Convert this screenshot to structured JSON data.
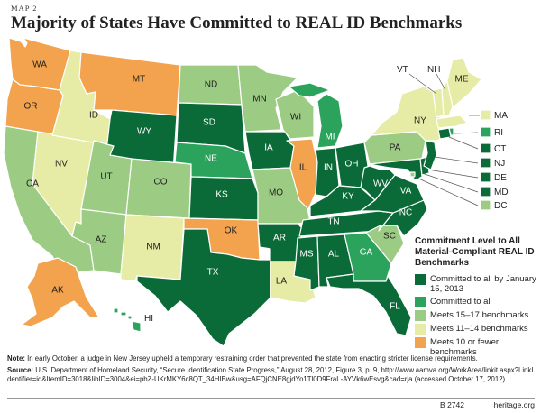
{
  "header": {
    "map_label": "MAP 2",
    "title": "Majority of States Have Committed to REAL ID Benchmarks"
  },
  "categories": [
    {
      "id": "all2013",
      "label": "Committed to all by January 15, 2013",
      "color": "#0b6b38"
    },
    {
      "id": "all",
      "label": "Committed to all",
      "color": "#2ba35c"
    },
    {
      "id": "m1517",
      "label": "Meets 15–17 benchmarks",
      "color": "#9ccc84"
    },
    {
      "id": "m1114",
      "label": "Meets 11–14 benchmarks",
      "color": "#e6eba5"
    },
    {
      "id": "m10",
      "label": "Meets 10 or fewer benchmarks",
      "color": "#f3a24e"
    }
  ],
  "legend": {
    "title": "Commitment Level to All Material-Compliant REAL ID Benchmarks"
  },
  "states": {
    "WA": "m10",
    "OR": "m10",
    "CA": "m1517",
    "NV": "m1114",
    "ID": "m1114",
    "MT": "m10",
    "WY": "all2013",
    "UT": "m1517",
    "AZ": "m1517",
    "CO": "m1517",
    "NM": "m1114",
    "ND": "m1517",
    "SD": "all2013",
    "NE": "all",
    "KS": "all2013",
    "OK": "m10",
    "TX": "all2013",
    "MN": "m1517",
    "IA": "all2013",
    "MO": "m1517",
    "AR": "all2013",
    "LA": "m1114",
    "WI": "m1517",
    "IL": "m10",
    "MI": "all",
    "IN": "all2013",
    "OH": "all2013",
    "KY": "all2013",
    "TN": "all2013",
    "MS": "all2013",
    "AL": "all2013",
    "GA": "all",
    "FL": "all2013",
    "SC": "m1517",
    "NC": "all2013",
    "VA": "all2013",
    "WV": "all2013",
    "PA": "m1517",
    "NY": "m1114",
    "VT": "m1114",
    "NH": "m1114",
    "ME": "m1114",
    "MA": "m1114",
    "RI": "all",
    "CT": "all2013",
    "NJ": "all2013",
    "DE": "all2013",
    "MD": "all2013",
    "DC": "m1517",
    "AK": "m10",
    "HI": "all"
  },
  "state_labels": {
    "WA": "WA",
    "OR": "OR",
    "CA": "CA",
    "NV": "NV",
    "ID": "ID",
    "MT": "MT",
    "WY": "WY",
    "UT": "UT",
    "AZ": "AZ",
    "CO": "CO",
    "NM": "NM",
    "ND": "ND",
    "SD": "SD",
    "NE": "NE",
    "KS": "KS",
    "OK": "OK",
    "TX": "TX",
    "MN": "MN",
    "IA": "IA",
    "MO": "MO",
    "AR": "AR",
    "LA": "LA",
    "WI": "WI",
    "IL": "IL",
    "MI": "MI",
    "IN": "IN",
    "OH": "OH",
    "KY": "KY",
    "TN": "TN",
    "MS": "MS",
    "AL": "AL",
    "GA": "GA",
    "FL": "FL",
    "SC": "SC",
    "NC": "NC",
    "VA": "VA",
    "WV": "WV",
    "PA": "PA",
    "NY": "NY",
    "VT": "VT",
    "NH": "NH",
    "ME": "ME",
    "MA": "MA",
    "RI": "RI",
    "CT": "CT",
    "NJ": "NJ",
    "DE": "DE",
    "MD": "MD",
    "DC": "DC",
    "AK": "AK",
    "HI": "HI"
  },
  "notes": {
    "note_label": "Note:",
    "note_text": "In early October, a judge in New Jersey upheld a temporary restraining order that prevented the state from enacting stricter license requirements.",
    "source_label": "Source:",
    "source_text": "U.S. Department of Homeland Security, “Secure Identification State Progress,” August 28, 2012, Figure 3, p. 9, http://www.aamva.org/WorkArea/linkit.aspx?LinkIdentifier=id&ItemID=3018&libID=3004&ei=pbZ-UKrMKY6c8QT_34HIBw&usg=AFQjCNE8gjdYo1Tl0D9FraL-AYVk6wEsvg&cad=rja (accessed October 17, 2012)."
  },
  "footer": {
    "id": "B 2742",
    "site": "heritage.org"
  }
}
